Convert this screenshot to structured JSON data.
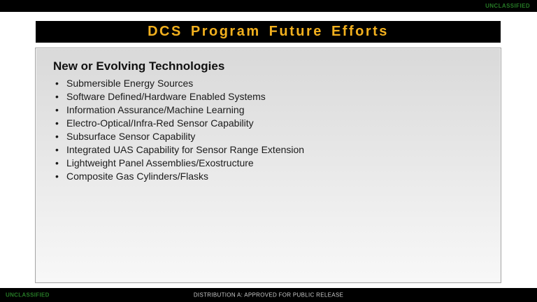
{
  "top_bar": {
    "classification": "UNCLASSIFIED",
    "classification_color": "#267a26",
    "bg_color": "#000000"
  },
  "title_bar": {
    "title": "DCS Program Future Efforts",
    "title_color": "#f2b01e",
    "bg_color": "#000000"
  },
  "content": {
    "heading": "New or Evolving Technologies",
    "bullets": [
      "Submersible Energy Sources",
      "Software Defined/Hardware Enabled Systems",
      "Information Assurance/Machine Learning",
      "Electro-Optical/Infra-Red Sensor Capability",
      "Subsurface Sensor Capability",
      "Integrated UAS Capability for Sensor Range Extension",
      "Lightweight Panel Assemblies/Exostructure",
      "Composite Gas Cylinders/Flasks"
    ]
  },
  "bottom_bar": {
    "classification": "UNCLASSIFIED",
    "distribution": "DISTRIBUTION A: APPROVED FOR PUBLIC RELEASE",
    "bg_color": "#000000"
  }
}
